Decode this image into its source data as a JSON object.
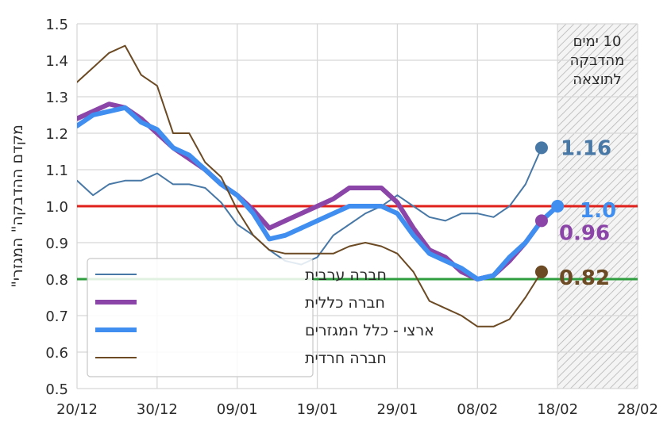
{
  "chart_data": {
    "type": "line",
    "ylabel": "מקדם ההדבקה\" המגזרי\"",
    "xlabel": "",
    "title": "",
    "x_ticks": [
      "20/12",
      "30/12",
      "09/01",
      "19/01",
      "29/01",
      "08/02",
      "18/02",
      "28/02"
    ],
    "y_ticks": [
      "0.5",
      "0.6",
      "0.7",
      "0.8",
      "0.9",
      "1.0",
      "1.1",
      "1.2",
      "1.3",
      "1.4",
      "1.5"
    ],
    "ylim": [
      0.5,
      1.5
    ],
    "xlim": [
      "2020-12-20",
      "2021-02-28"
    ],
    "grid": true,
    "legend_position": "bottom-left",
    "note": "10 ימים מהדבקה לתוצאה",
    "note_start": "2021-02-18",
    "reference_lines": [
      {
        "value": 1.0,
        "color": "#e0201b"
      },
      {
        "value": 0.8,
        "color": "#2e9e3e"
      }
    ],
    "series": [
      {
        "name": "חברה ערבית",
        "color": "#4878a6",
        "width": 2,
        "end_label": "1.16",
        "x": [
          "2020-12-20",
          "2020-12-22",
          "2020-12-24",
          "2020-12-26",
          "2020-12-28",
          "2020-12-30",
          "2021-01-01",
          "2021-01-03",
          "2021-01-05",
          "2021-01-07",
          "2021-01-09",
          "2021-01-11",
          "2021-01-13",
          "2021-01-15",
          "2021-01-17",
          "2021-01-19",
          "2021-01-21",
          "2021-01-23",
          "2021-01-25",
          "2021-01-27",
          "2021-01-29",
          "2021-01-31",
          "2021-02-02",
          "2021-02-04",
          "2021-02-06",
          "2021-02-08",
          "2021-02-10",
          "2021-02-12",
          "2021-02-14",
          "2021-02-16"
        ],
        "y": [
          1.07,
          1.03,
          1.06,
          1.07,
          1.07,
          1.09,
          1.06,
          1.06,
          1.05,
          1.01,
          0.95,
          0.92,
          0.88,
          0.85,
          0.84,
          0.86,
          0.92,
          0.95,
          0.98,
          1.0,
          1.03,
          1.0,
          0.97,
          0.96,
          0.98,
          0.98,
          0.97,
          1.0,
          1.06,
          1.16
        ]
      },
      {
        "name": "חברה כללית",
        "color": "#8b45a8",
        "width": 6,
        "end_label": "0.96",
        "x": [
          "2020-12-20",
          "2020-12-22",
          "2020-12-24",
          "2020-12-26",
          "2020-12-28",
          "2020-12-30",
          "2021-01-01",
          "2021-01-03",
          "2021-01-05",
          "2021-01-07",
          "2021-01-09",
          "2021-01-11",
          "2021-01-13",
          "2021-01-15",
          "2021-01-17",
          "2021-01-19",
          "2021-01-21",
          "2021-01-23",
          "2021-01-25",
          "2021-01-27",
          "2021-01-29",
          "2021-01-31",
          "2021-02-02",
          "2021-02-04",
          "2021-02-06",
          "2021-02-08",
          "2021-02-10",
          "2021-02-12",
          "2021-02-14",
          "2021-02-16"
        ],
        "y": [
          1.24,
          1.26,
          1.28,
          1.27,
          1.24,
          1.2,
          1.16,
          1.13,
          1.1,
          1.06,
          1.03,
          0.99,
          0.94,
          0.96,
          0.98,
          1.0,
          1.02,
          1.05,
          1.05,
          1.05,
          1.01,
          0.94,
          0.88,
          0.86,
          0.82,
          0.8,
          0.81,
          0.85,
          0.9,
          0.96
        ]
      },
      {
        "name": "ארצי - כלל המגזרים",
        "color": "#3f8ef0",
        "width": 6,
        "end_label": "1.0",
        "x": [
          "2020-12-20",
          "2020-12-22",
          "2020-12-24",
          "2020-12-26",
          "2020-12-28",
          "2020-12-30",
          "2021-01-01",
          "2021-01-03",
          "2021-01-05",
          "2021-01-07",
          "2021-01-09",
          "2021-01-11",
          "2021-01-13",
          "2021-01-15",
          "2021-01-17",
          "2021-01-19",
          "2021-01-21",
          "2021-01-23",
          "2021-01-25",
          "2021-01-27",
          "2021-01-29",
          "2021-01-31",
          "2021-02-02",
          "2021-02-04",
          "2021-02-06",
          "2021-02-08",
          "2021-02-10",
          "2021-02-12",
          "2021-02-14",
          "2021-02-16",
          "2021-02-18"
        ],
        "y": [
          1.22,
          1.25,
          1.26,
          1.27,
          1.23,
          1.21,
          1.16,
          1.14,
          1.1,
          1.06,
          1.03,
          0.98,
          0.91,
          0.92,
          0.94,
          0.96,
          0.98,
          1.0,
          1.0,
          1.0,
          0.98,
          0.92,
          0.87,
          0.85,
          0.83,
          0.8,
          0.81,
          0.86,
          0.9,
          0.96,
          1.0
        ]
      },
      {
        "name": "חברה חרדית",
        "color": "#6b4a24",
        "width": 2,
        "end_label": "0.82",
        "x": [
          "2020-12-20",
          "2020-12-22",
          "2020-12-24",
          "2020-12-26",
          "2020-12-28",
          "2020-12-30",
          "2021-01-01",
          "2021-01-03",
          "2021-01-05",
          "2021-01-07",
          "2021-01-09",
          "2021-01-11",
          "2021-01-13",
          "2021-01-15",
          "2021-01-17",
          "2021-01-19",
          "2021-01-21",
          "2021-01-23",
          "2021-01-25",
          "2021-01-27",
          "2021-01-29",
          "2021-01-31",
          "2021-02-02",
          "2021-02-04",
          "2021-02-06",
          "2021-02-08",
          "2021-02-10",
          "2021-02-12",
          "2021-02-14",
          "2021-02-16"
        ],
        "y": [
          1.34,
          1.38,
          1.42,
          1.44,
          1.36,
          1.33,
          1.2,
          1.2,
          1.12,
          1.08,
          0.99,
          0.92,
          0.88,
          0.87,
          0.87,
          0.87,
          0.87,
          0.89,
          0.9,
          0.89,
          0.87,
          0.82,
          0.74,
          0.72,
          0.7,
          0.67,
          0.67,
          0.69,
          0.75,
          0.82
        ]
      }
    ]
  }
}
